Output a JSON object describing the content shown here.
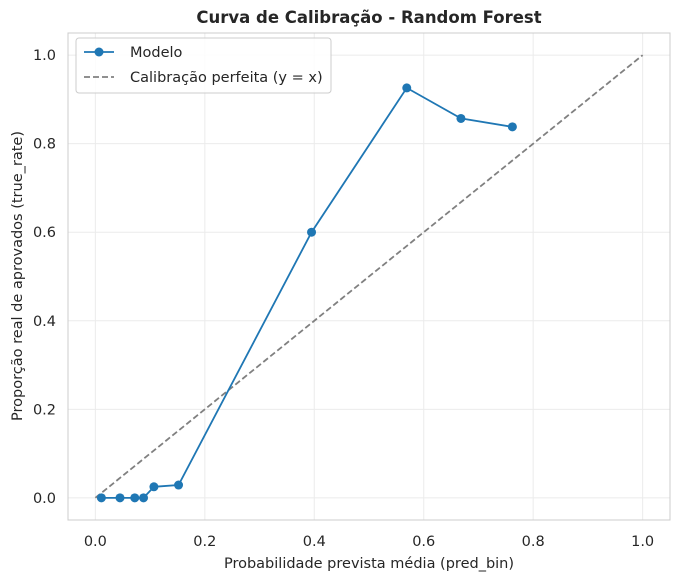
{
  "chart_data": {
    "type": "line",
    "title": "Curva de Calibração - Random Forest",
    "xlabel": "Probabilidade prevista média (pred_bin)",
    "ylabel": "Proporção real de aprovados (true_rate)",
    "xlim": [
      -0.05,
      1.05
    ],
    "ylim": [
      -0.05,
      1.05
    ],
    "xticks": [
      "0.0",
      "0.2",
      "0.4",
      "0.6",
      "0.8",
      "1.0"
    ],
    "yticks": [
      "0.0",
      "0.2",
      "0.4",
      "0.6",
      "0.8",
      "1.0"
    ],
    "grid": true,
    "legend_position": "top-left",
    "series": [
      {
        "name": "Modelo",
        "style": "solid-marker",
        "color": "#1f77b4",
        "x": [
          0.011,
          0.045,
          0.072,
          0.088,
          0.107,
          0.152,
          0.395,
          0.569,
          0.668,
          0.762
        ],
        "y": [
          0.0,
          0.0,
          0.0,
          0.0,
          0.025,
          0.029,
          0.6,
          0.926,
          0.857,
          0.838
        ]
      },
      {
        "name": "Calibração perfeita (y = x)",
        "style": "dashed",
        "color": "#808080",
        "x": [
          0.0,
          1.0
        ],
        "y": [
          0.0,
          1.0
        ]
      }
    ]
  }
}
